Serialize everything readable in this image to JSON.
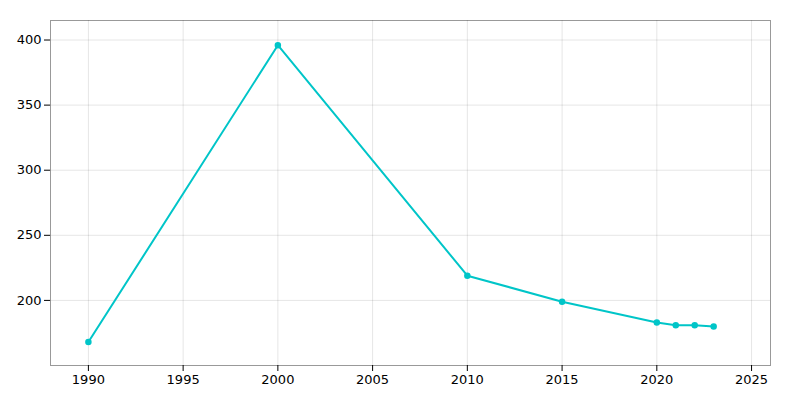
{
  "chart_data": {
    "type": "line",
    "x": [
      1990,
      2000,
      2010,
      2015,
      2020,
      2021,
      2022,
      2023
    ],
    "values": [
      168,
      396,
      219,
      199,
      183,
      181,
      181,
      180
    ],
    "color": "#00C5C8",
    "marker": "o",
    "xlim": [
      1988,
      2026
    ],
    "ylim": [
      150,
      415
    ],
    "xticks": [
      1990,
      1995,
      2000,
      2005,
      2010,
      2015,
      2020,
      2025
    ],
    "yticks": [
      200,
      250,
      300,
      350,
      400
    ],
    "grid": true
  }
}
